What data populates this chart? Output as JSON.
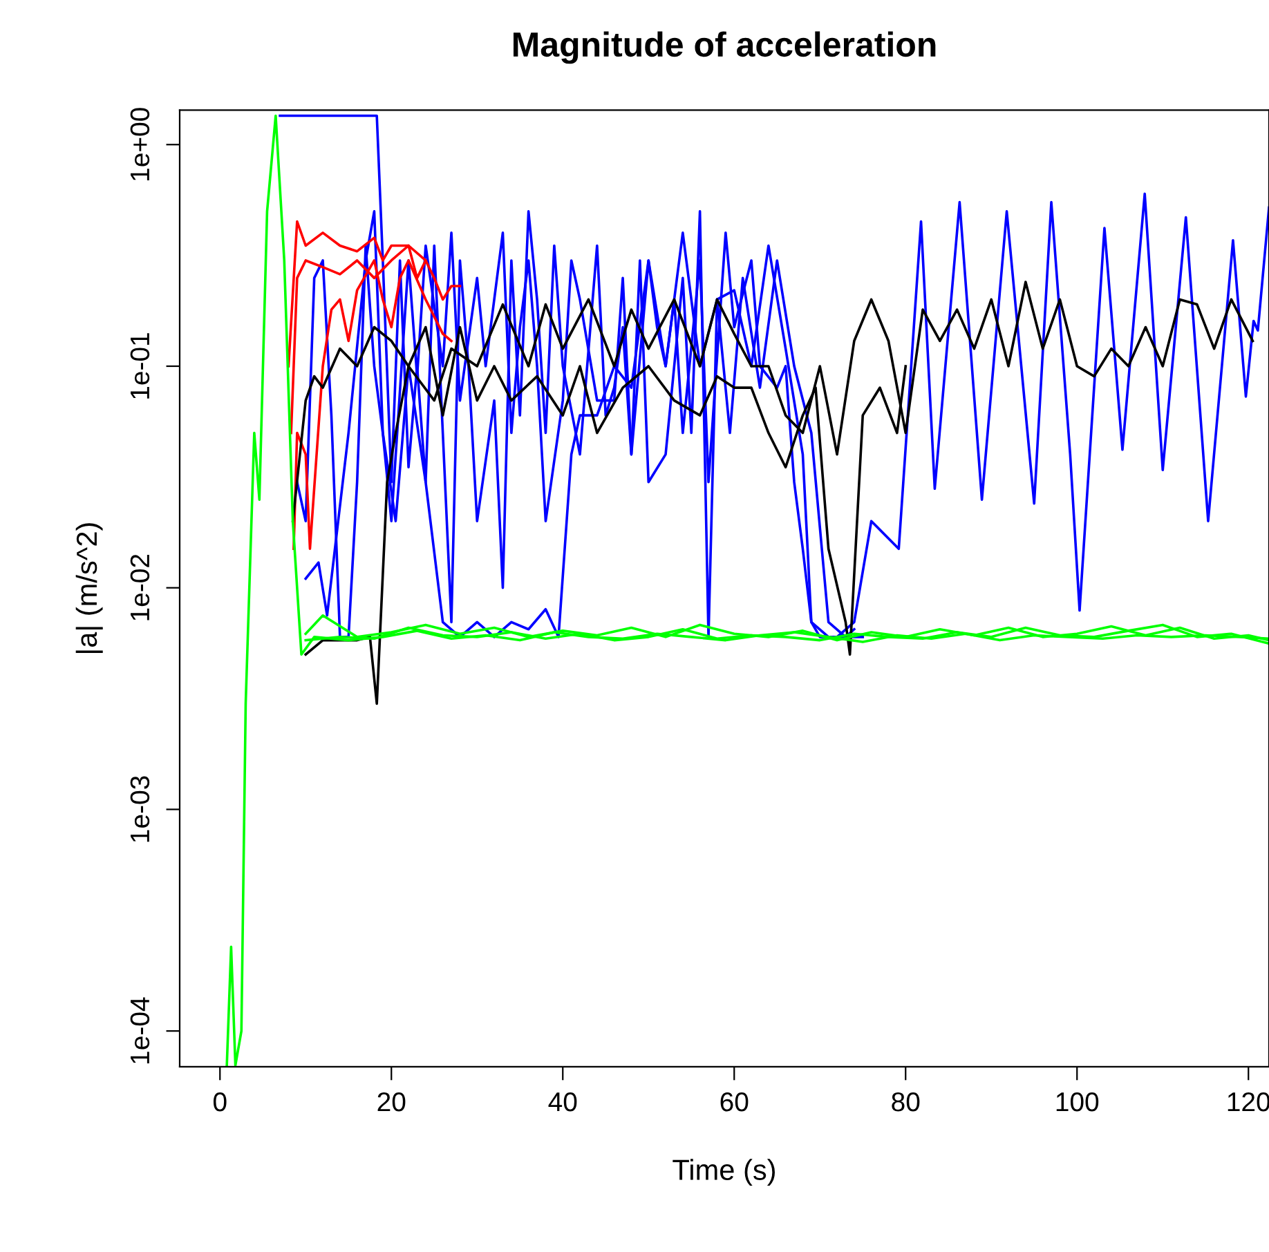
{
  "chart_data": {
    "type": "line",
    "title": "Magnitude of acceleration",
    "xlabel": "Time (s)",
    "ylabel": "|a| (m/s^2)",
    "log": "y",
    "grid": false,
    "line_style": "solid",
    "marker": "none",
    "xlim": [
      -4.7,
      122.4
    ],
    "ylim": [
      6.9e-05,
      1.43
    ],
    "xticks": [
      0,
      20,
      40,
      60,
      80,
      100,
      120
    ],
    "yticks": [
      {
        "value": 0.0001,
        "label": "1e-04"
      },
      {
        "value": 0.001,
        "label": "1e-03"
      },
      {
        "value": 0.01,
        "label": "1e-02"
      },
      {
        "value": 0.1,
        "label": "1e-01"
      },
      {
        "value": 1,
        "label": "1e+00"
      }
    ],
    "series": [
      {
        "color": "#0000ff",
        "x": [
          7.0,
          18.3,
          19,
          20,
          21,
          22,
          23,
          24,
          25,
          26,
          27,
          28,
          29,
          30,
          32,
          33,
          34,
          35,
          36,
          37,
          38,
          39,
          40,
          42,
          44,
          45,
          46,
          47,
          48,
          49,
          50,
          52,
          54,
          55,
          56,
          57,
          58,
          60,
          62,
          64,
          66,
          68,
          69,
          70,
          72,
          74,
          76,
          79.2,
          81.8,
          83.4,
          86.3,
          88.9,
          91.8,
          95,
          97,
          99.2,
          100.3,
          103.2,
          105.3,
          107.9,
          110,
          112.7,
          115.3,
          118.2,
          119.7,
          120.6,
          121.1,
          122.4
        ],
        "values": [
          1.35,
          1.35,
          0.3,
          0.03,
          0.3,
          0.035,
          0.1,
          0.03,
          0.35,
          0.05,
          0.007,
          0.3,
          0.1,
          0.02,
          0.07,
          0.01,
          0.3,
          0.06,
          0.5,
          0.2,
          0.05,
          0.35,
          0.1,
          0.04,
          0.35,
          0.06,
          0.08,
          0.15,
          0.04,
          0.3,
          0.03,
          0.04,
          0.25,
          0.05,
          0.5,
          0.006,
          0.2,
          0.22,
          0.1,
          0.35,
          0.12,
          0.04,
          0.007,
          0.006,
          0.006,
          0.007,
          0.02,
          0.015,
          0.45,
          0.028,
          0.55,
          0.025,
          0.5,
          0.024,
          0.55,
          0.04,
          0.0079,
          0.42,
          0.042,
          0.6,
          0.034,
          0.47,
          0.02,
          0.37,
          0.073,
          0.16,
          0.145,
          0.52
        ]
      },
      {
        "color": "#0000ff",
        "x": [
          9,
          10,
          11,
          12,
          13,
          14,
          15,
          16,
          17,
          18,
          19,
          20,
          22,
          23,
          24,
          26,
          27,
          28,
          30,
          31,
          33,
          34,
          35,
          36,
          37,
          38,
          40,
          41,
          42,
          44,
          46,
          47,
          48,
          50,
          51,
          52,
          53,
          54,
          56,
          57,
          59,
          60,
          62,
          63,
          65,
          66,
          67,
          68,
          69,
          71,
          73,
          74
        ],
        "values": [
          0.03,
          0.02,
          0.25,
          0.3,
          0.06,
          0.006,
          0.006,
          0.03,
          0.35,
          0.1,
          0.05,
          0.02,
          0.3,
          0.09,
          0.35,
          0.1,
          0.4,
          0.07,
          0.25,
          0.1,
          0.4,
          0.05,
          0.15,
          0.3,
          0.1,
          0.02,
          0.07,
          0.3,
          0.2,
          0.07,
          0.07,
          0.25,
          0.04,
          0.3,
          0.15,
          0.1,
          0.2,
          0.05,
          0.3,
          0.03,
          0.4,
          0.15,
          0.3,
          0.1,
          0.08,
          0.1,
          0.03,
          0.015,
          0.007,
          0.006,
          0.006,
          0.0065
        ]
      },
      {
        "color": "#0000ff",
        "x": [
          10,
          11.5,
          12.5,
          15,
          17,
          18,
          19,
          20.5,
          22,
          24,
          26,
          28,
          30,
          32,
          34,
          36,
          38,
          39.5,
          41,
          42,
          44,
          46,
          48,
          50,
          52,
          54,
          56,
          58,
          59.5,
          61,
          63,
          65,
          67,
          69,
          71,
          73,
          75
        ],
        "values": [
          0.011,
          0.013,
          0.0075,
          0.05,
          0.3,
          0.5,
          0.05,
          0.02,
          0.1,
          0.03,
          0.007,
          0.006,
          0.007,
          0.006,
          0.007,
          0.0065,
          0.008,
          0.006,
          0.04,
          0.06,
          0.06,
          0.1,
          0.08,
          0.3,
          0.1,
          0.4,
          0.1,
          0.2,
          0.05,
          0.25,
          0.08,
          0.3,
          0.1,
          0.05,
          0.007,
          0.006,
          0.006
        ]
      },
      {
        "color": "#ff0000",
        "x": [
          8,
          9,
          10,
          12,
          14,
          16,
          18,
          19,
          20,
          22,
          23,
          24
        ],
        "values": [
          0.1,
          0.45,
          0.35,
          0.4,
          0.35,
          0.33,
          0.38,
          0.3,
          0.35,
          0.35,
          0.25,
          0.3
        ]
      },
      {
        "color": "#ff0000",
        "x": [
          8.3,
          9,
          10,
          12,
          14,
          16,
          18,
          20,
          22,
          24,
          25,
          26,
          27,
          28
        ],
        "values": [
          0.05,
          0.25,
          0.3,
          0.28,
          0.26,
          0.3,
          0.25,
          0.3,
          0.35,
          0.3,
          0.25,
          0.2,
          0.23,
          0.23
        ]
      },
      {
        "color": "#ff0000",
        "x": [
          8.6,
          9,
          10,
          10.5,
          12,
          13,
          14,
          15,
          16,
          18,
          19,
          20,
          21,
          22,
          24,
          26,
          27
        ],
        "values": [
          0.015,
          0.05,
          0.04,
          0.015,
          0.1,
          0.18,
          0.2,
          0.13,
          0.22,
          0.3,
          0.2,
          0.15,
          0.25,
          0.3,
          0.2,
          0.14,
          0.13
        ]
      },
      {
        "color": "#000000",
        "x": [
          8.5,
          10,
          11,
          12,
          14,
          16,
          18,
          20,
          22,
          25,
          27,
          30,
          33,
          36,
          38,
          40,
          43,
          46,
          48,
          50,
          53,
          56,
          58,
          60,
          62,
          64,
          66,
          68,
          70,
          72,
          74,
          76,
          78,
          80,
          82,
          84,
          86,
          88,
          90,
          92,
          94,
          96,
          98,
          100,
          102,
          104,
          106,
          108,
          110,
          112,
          114,
          116,
          118,
          120.5
        ],
        "values": [
          0.02,
          0.07,
          0.09,
          0.08,
          0.12,
          0.1,
          0.15,
          0.13,
          0.1,
          0.07,
          0.12,
          0.1,
          0.19,
          0.1,
          0.19,
          0.12,
          0.2,
          0.1,
          0.18,
          0.12,
          0.2,
          0.1,
          0.2,
          0.14,
          0.1,
          0.1,
          0.06,
          0.05,
          0.1,
          0.04,
          0.13,
          0.2,
          0.13,
          0.05,
          0.18,
          0.13,
          0.18,
          0.12,
          0.2,
          0.1,
          0.24,
          0.12,
          0.2,
          0.1,
          0.09,
          0.12,
          0.1,
          0.15,
          0.1,
          0.2,
          0.19,
          0.12,
          0.2,
          0.13
        ]
      },
      {
        "color": "#000000",
        "x": [
          10,
          12,
          16,
          17.5,
          18.3,
          19.5,
          20.5,
          22,
          24,
          26,
          28,
          30,
          32,
          34,
          37,
          40,
          42,
          44,
          47,
          50,
          53,
          56,
          58,
          60,
          62,
          64,
          66,
          68,
          69.5,
          71,
          73,
          73.5,
          75,
          77,
          79,
          80
        ],
        "values": [
          0.005,
          0.0058,
          0.0058,
          0.006,
          0.003,
          0.03,
          0.05,
          0.1,
          0.15,
          0.06,
          0.15,
          0.07,
          0.1,
          0.07,
          0.09,
          0.06,
          0.1,
          0.05,
          0.08,
          0.1,
          0.07,
          0.06,
          0.09,
          0.08,
          0.08,
          0.05,
          0.035,
          0.06,
          0.08,
          0.015,
          0.007,
          0.005,
          0.06,
          0.08,
          0.05,
          0.1
        ]
      },
      {
        "color": "#00ff00",
        "x": [
          10,
          14,
          18,
          22,
          26,
          30,
          34,
          38,
          42,
          46,
          50,
          54,
          58,
          62,
          66,
          70,
          74,
          78,
          82,
          86,
          90,
          94,
          98,
          102,
          106,
          110,
          114,
          118,
          122.4
        ],
        "values": [
          0.0058,
          0.006,
          0.0059,
          0.0066,
          0.0061,
          0.006,
          0.0063,
          0.0059,
          0.0062,
          0.0058,
          0.006,
          0.0065,
          0.0059,
          0.0061,
          0.006,
          0.0058,
          0.0062,
          0.006,
          0.0059,
          0.0063,
          0.006,
          0.0066,
          0.0061,
          0.006,
          0.0064,
          0.0068,
          0.006,
          0.0062,
          0.0056
        ]
      },
      {
        "color": "#00ff00",
        "x": [
          10,
          12,
          16,
          20,
          24,
          28,
          32,
          36,
          40,
          44,
          48,
          52,
          56,
          60,
          64,
          68,
          72,
          76,
          80,
          84,
          88,
          92,
          96,
          100,
          104,
          108,
          112,
          116,
          120,
          122.4
        ],
        "values": [
          0.0062,
          0.0075,
          0.006,
          0.0063,
          0.0068,
          0.0062,
          0.0066,
          0.006,
          0.0064,
          0.0061,
          0.0066,
          0.006,
          0.0068,
          0.0062,
          0.006,
          0.0064,
          0.0058,
          0.0063,
          0.006,
          0.0065,
          0.0061,
          0.0066,
          0.006,
          0.0062,
          0.0067,
          0.0061,
          0.0066,
          0.0059,
          0.0061,
          0.0058
        ]
      },
      {
        "color": "#00ff00",
        "x": [
          0.8,
          1.3,
          1.8,
          2.5,
          3.0,
          4.0,
          4.6,
          5.5,
          6.5,
          7.5,
          8.5,
          9.5,
          11,
          15,
          19,
          23,
          27,
          31,
          35,
          39,
          43,
          47,
          51,
          55,
          59,
          63,
          67,
          71,
          75,
          79,
          83,
          87,
          91,
          95,
          99,
          103,
          107,
          111,
          115,
          119,
          122.4
        ],
        "values": [
          7e-05,
          0.00024,
          7e-05,
          0.0001,
          0.003,
          0.05,
          0.025,
          0.5,
          1.35,
          0.3,
          0.02,
          0.005,
          0.006,
          0.0058,
          0.006,
          0.0064,
          0.0059,
          0.0061,
          0.0058,
          0.0063,
          0.006,
          0.0059,
          0.0062,
          0.006,
          0.0058,
          0.0061,
          0.0063,
          0.006,
          0.0057,
          0.0061,
          0.0059,
          0.0062,
          0.0058,
          0.0061,
          0.006,
          0.0059,
          0.0061,
          0.006,
          0.0061,
          0.006,
          0.0059
        ]
      }
    ]
  }
}
